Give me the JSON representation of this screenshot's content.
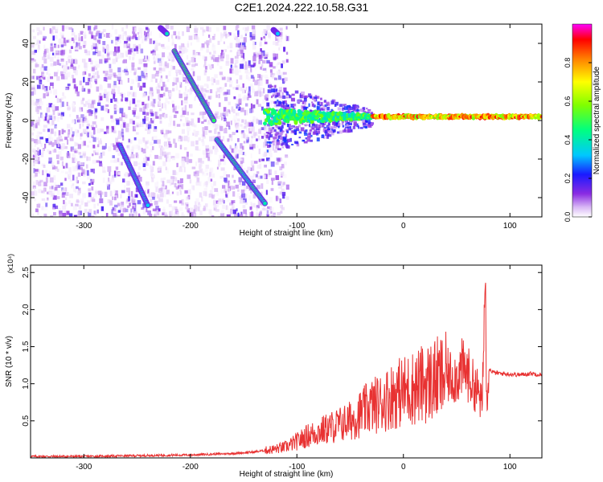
{
  "figure_title": "C2E1.2024.222.10.58.G31",
  "colors": {
    "snr_line": "#e83232",
    "spectrogram_background": "#ffffff"
  },
  "chart_data": [
    {
      "type": "heatmap",
      "title": "C2E1.2024.222.10.58.G31",
      "xlabel": "Height of straight line (km)",
      "ylabel": "Frequency (Hz)",
      "xlim": [
        -350,
        130
      ],
      "ylim": [
        -50,
        50
      ],
      "xticks": [
        -300,
        -200,
        -100,
        0,
        100
      ],
      "yticks": [
        -40,
        -20,
        0,
        20,
        40
      ],
      "colorbar": {
        "label": "Normalized spectral amplitude",
        "range": [
          0,
          1
        ],
        "ticks": [
          "0.0",
          "0.2",
          "0.4",
          "0.6",
          "0.8"
        ],
        "colormap": [
          "#ffffff",
          "#d9b8f5",
          "#8a2be2",
          "#1a1aff",
          "#00c8ff",
          "#00ff80",
          "#80ff00",
          "#ffff00",
          "#ff8000",
          "#ff0000",
          "#ff00ff"
        ]
      },
      "features": [
        {
          "name": "line 1",
          "x": [
            -266,
            -240
          ],
          "y": [
            -13,
            -44
          ],
          "amplitude": 0.35
        },
        {
          "name": "line 2",
          "x": [
            -228,
            -222
          ],
          "y": [
            48,
            45
          ],
          "amplitude": 0.4
        },
        {
          "name": "line 3",
          "x": [
            -215,
            -178
          ],
          "y": [
            36,
            0
          ],
          "amplitude": 0.45
        },
        {
          "name": "line 4",
          "x": [
            -175,
            -130
          ],
          "y": [
            -10,
            -43
          ],
          "amplitude": 0.4
        },
        {
          "name": "line 5",
          "x": [
            -122,
            -118
          ],
          "y": [
            47,
            45
          ],
          "amplitude": 0.35
        },
        {
          "name": "carrier band",
          "x": [
            -130,
            130
          ],
          "y": [
            2,
            2
          ],
          "amplitude": 0.6
        }
      ]
    },
    {
      "type": "line",
      "xlabel": "Height of straight line (km)",
      "ylabel": "SNR (10 * v/v)",
      "y_multiplier": "(x10⁴)",
      "xlim": [
        -350,
        130
      ],
      "ylim": [
        0,
        2.6
      ],
      "xticks": [
        -300,
        -200,
        -100,
        0,
        100
      ],
      "yticks": [
        "0.5",
        "1.0",
        "1.5",
        "2.0",
        "2.5"
      ],
      "series": [
        {
          "x": [
            -350,
            -300,
            -250,
            -200,
            -160,
            -140,
            -120,
            -110,
            -100,
            -90,
            -80,
            -70,
            -60,
            -50,
            -40,
            -30,
            -20,
            -10,
            0,
            10,
            20,
            30,
            40,
            50,
            55,
            60,
            65,
            70,
            74,
            76,
            77,
            78,
            80,
            85,
            90,
            100,
            110,
            120,
            130
          ],
          "y": [
            0.02,
            0.02,
            0.03,
            0.04,
            0.06,
            0.08,
            0.12,
            0.15,
            0.22,
            0.3,
            0.35,
            0.4,
            0.45,
            0.5,
            0.6,
            0.7,
            0.75,
            0.85,
            0.9,
            0.95,
            1.0,
            1.05,
            1.1,
            1.1,
            1.2,
            1.15,
            1.0,
            0.9,
            0.7,
            1.9,
            2.6,
            0.7,
            1.2,
            1.15,
            1.14,
            1.13,
            1.12,
            1.14,
            1.12
          ]
        }
      ]
    }
  ]
}
